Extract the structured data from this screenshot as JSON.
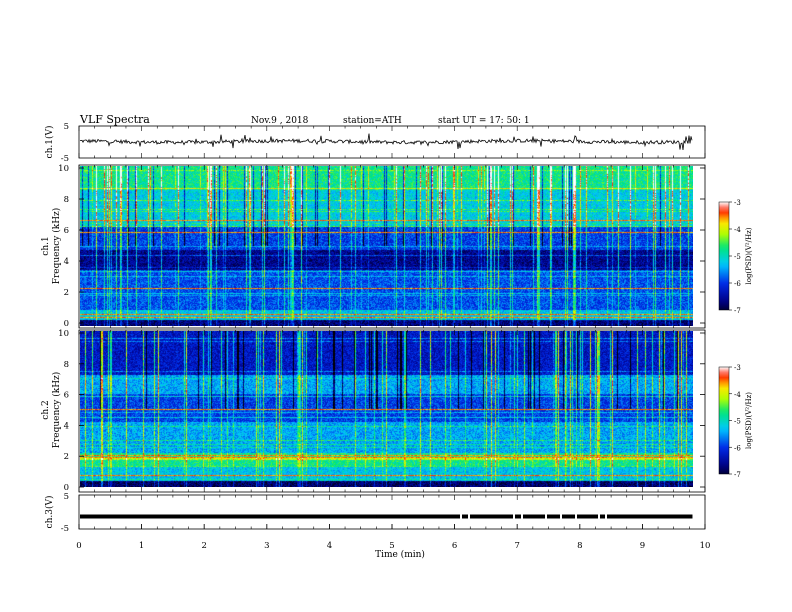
{
  "header": {
    "title": "VLF Spectra",
    "date": "Nov.9 , 2018",
    "station": "station=ATH",
    "start": "start UT = 17: 50: 1"
  },
  "chart_data": [
    {
      "type": "line",
      "panel": "ch1-waveform",
      "ylabel": "ch.1(V)",
      "ylim": [
        -5,
        5
      ],
      "y_ticks": [
        "5",
        "-5"
      ],
      "xlim": [
        0,
        10
      ],
      "description_values": "noisy trace near +0.2 V with frequent spikes",
      "x": [
        0,
        1,
        2,
        3,
        4,
        5,
        6,
        7,
        8,
        9,
        9.8
      ],
      "y": [
        0.2,
        0.1,
        0.3,
        0.0,
        0.2,
        0.1,
        0.2,
        0.0,
        0.3,
        0.1,
        0.2
      ]
    },
    {
      "type": "heatmap",
      "panel": "ch1-spectrogram",
      "ylabel": "ch.1\nFrequency (kHz)",
      "ylim": [
        0,
        10
      ],
      "y_ticks": [
        "0",
        "2",
        "4",
        "6",
        "8",
        "10"
      ],
      "xlim": [
        0,
        10
      ],
      "colorbar": {
        "label": "log(PSD)(V²/Hz)",
        "range": [
          -7,
          -3
        ],
        "ticks": [
          "-3",
          "-4",
          "-5",
          "-6",
          "-7"
        ]
      }
    },
    {
      "type": "heatmap",
      "panel": "ch2-spectrogram",
      "ylabel": "ch.2\nFrequency (kHz)",
      "ylim": [
        0,
        10
      ],
      "y_ticks": [
        "0",
        "2",
        "4",
        "6",
        "8",
        "10"
      ],
      "xlim": [
        0,
        10
      ],
      "colorbar": {
        "label": "log(PSD)(V²/Hz)",
        "range": [
          -7,
          -3
        ],
        "ticks": [
          "-3",
          "-4",
          "-5",
          "-6",
          "-7"
        ]
      }
    },
    {
      "type": "line",
      "panel": "ch3-waveform",
      "ylabel": "ch.3(V)",
      "ylim": [
        -5,
        5
      ],
      "y_ticks": [
        "5",
        "-5"
      ],
      "xlim": [
        0,
        10
      ],
      "xlabel": "Time (min)",
      "x_ticks": [
        "0",
        "1",
        "2",
        "3",
        "4",
        "5",
        "6",
        "7",
        "8",
        "9",
        "10"
      ],
      "x": [
        0,
        9.8
      ],
      "y": [
        -1.5,
        -1.5
      ]
    }
  ]
}
